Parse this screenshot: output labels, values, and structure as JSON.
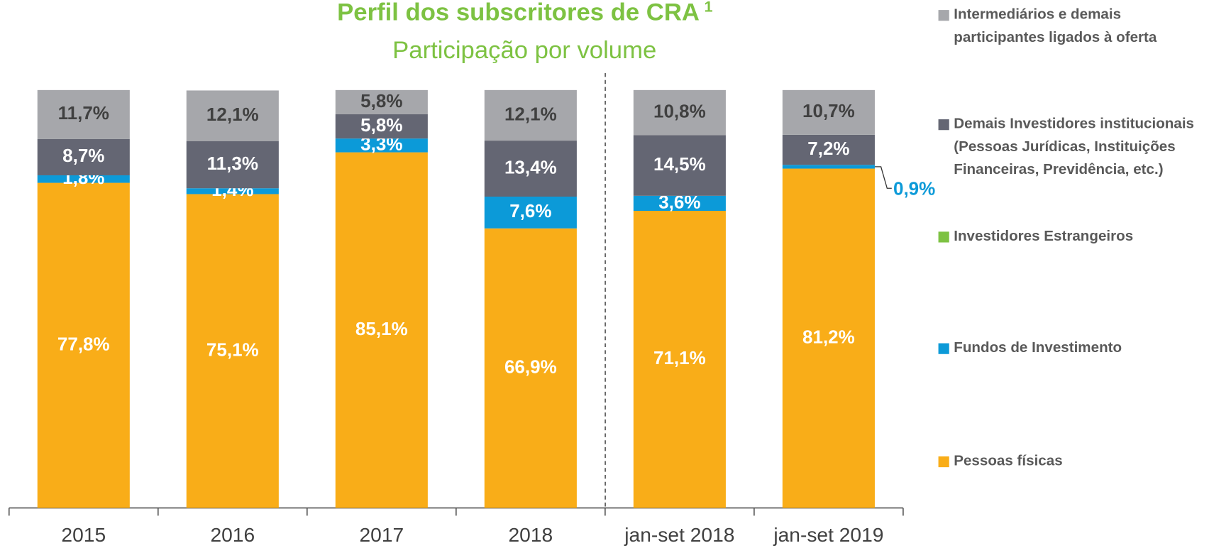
{
  "chart_data": {
    "type": "stacked-bar",
    "title": "Perfil dos subscritores de CRA",
    "title_note": "1",
    "subtitle": "Participação por volume",
    "categories": [
      "2015",
      "2016",
      "2017",
      "2018",
      "jan-set 2018",
      "jan-set 2019"
    ],
    "ylim": [
      0,
      100
    ],
    "series": [
      {
        "name": "Pessoas físicas",
        "color": "#F9AD18",
        "values": [
          77.8,
          75.1,
          85.1,
          66.9,
          71.1,
          81.2
        ],
        "value_labels": [
          "77,8%",
          "75,1%",
          "85,1%",
          "66,9%",
          "71,1%",
          "81,2%"
        ]
      },
      {
        "name": "Fundos de Investimento",
        "color": "#0C9AD8",
        "values": [
          1.8,
          1.4,
          3.3,
          7.6,
          3.6,
          0.9
        ],
        "value_labels": [
          "1,8%",
          "1,4%",
          "3,3%",
          "7,6%",
          "3,6%",
          "0,9%"
        ]
      },
      {
        "name": "Investidores Estrangeiros",
        "color": "#7DC242",
        "values": [
          0,
          0,
          0,
          0,
          0,
          0
        ]
      },
      {
        "name": "Demais Investidores institucionais (Pessoas Jurídicas, Instituições Financeiras, Previdência, etc.)",
        "color": "#646673",
        "values": [
          8.7,
          11.3,
          5.8,
          13.4,
          14.5,
          7.2
        ],
        "value_labels": [
          "8,7%",
          "11,3%",
          "5,8%",
          "13,4%",
          "14,5%",
          "7,2%"
        ]
      },
      {
        "name": "Intermediários e demais participantes ligados à oferta",
        "color": "#A6A7AB",
        "values": [
          11.7,
          12.1,
          5.8,
          12.1,
          10.8,
          10.7
        ],
        "value_labels": [
          "11,7%",
          "12,1%",
          "5,8%",
          "12,1%",
          "10,8%",
          "10,7%"
        ]
      }
    ]
  }
}
